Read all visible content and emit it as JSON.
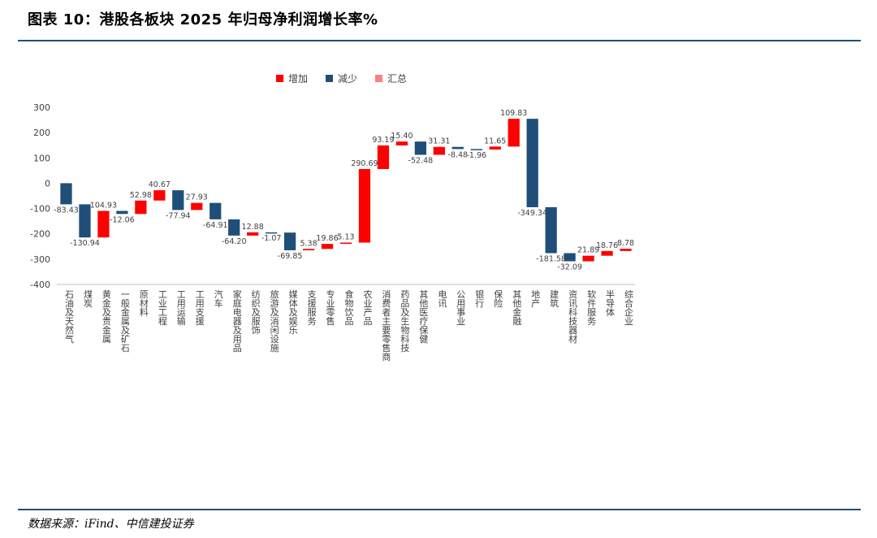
{
  "title": "图表 10：港股各板块 2025 年归母净利润增长率%",
  "source": "数据来源：iFind、中信建投证券",
  "colors": {
    "increase": "#ff0000",
    "decrease": "#1f4e79",
    "total": "#ff8080",
    "axis": "#bfbfbf",
    "rule": "#1f4e79"
  },
  "chart_data": {
    "type": "waterfall",
    "legend": [
      {
        "name": "增加",
        "color": "#ff0000"
      },
      {
        "name": "减少",
        "color": "#1f4e79"
      },
      {
        "name": "汇总",
        "color": "#ff8080"
      }
    ],
    "legend_position": "top-center",
    "ylim": [
      -400,
      300
    ],
    "yticks": [
      300,
      200,
      100,
      0,
      -100,
      -200,
      -300,
      -400
    ],
    "grid": false,
    "categories": [
      "石油及天然气",
      "煤炭",
      "黄金及贵金属",
      "一般金属及矿石",
      "原材料",
      "工业工程",
      "工用运输",
      "工用支援",
      "汽车",
      "家庭电器及用品",
      "纺织及服饰",
      "旅游及消闲设施",
      "媒体及娱乐",
      "支援服务",
      "专业零售",
      "食物饮品",
      "农业产品",
      "消费者主要零售商",
      "药品及生物科技",
      "其他医疗保健",
      "电讯",
      "公用事业",
      "银行",
      "保险",
      "其他金融",
      "地产",
      "建筑",
      "资讯科技器材",
      "软件服务",
      "半导体",
      "综合企业"
    ],
    "values": [
      -83.43,
      -130.94,
      104.93,
      -12.06,
      52.98,
      40.67,
      -77.94,
      27.93,
      -64.91,
      -64.2,
      12.88,
      -1.07,
      -69.85,
      5.38,
      19.86,
      5.13,
      290.69,
      93.19,
      15.4,
      -52.48,
      31.31,
      -8.48,
      -1.96,
      11.65,
      109.83,
      -349.34,
      -181.58,
      -32.09,
      21.89,
      18.76,
      8.78
    ],
    "labels": [
      "-83.43",
      "-130.94",
      "104.93",
      "-12.06",
      "52.98",
      "40.67",
      "-77.94",
      "27.93",
      "-64.91",
      "-64.20",
      "12.88",
      "-1.07",
      "-69.85",
      "5.38",
      "19.86",
      "5.13",
      "290.69",
      "93.19",
      "15.40",
      "-52.48",
      "31.31",
      "-8.48",
      "-1.96",
      "11.65",
      "109.83",
      "-349.34",
      "-181.58",
      "-32.09",
      "21.89",
      "18.76",
      "8.78"
    ]
  }
}
